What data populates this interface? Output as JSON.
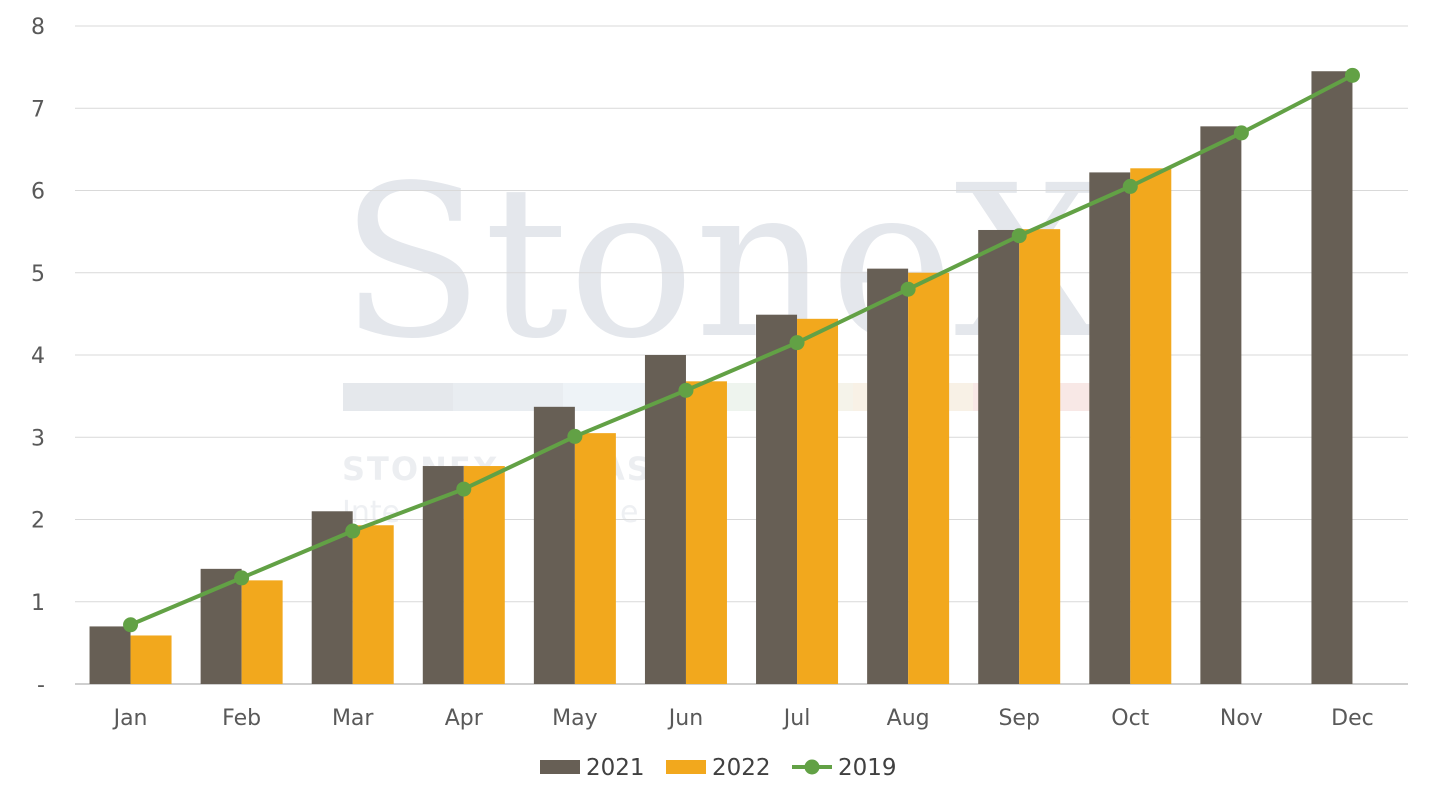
{
  "chart_data": {
    "type": "bar",
    "categories": [
      "Jan",
      "Feb",
      "Mar",
      "Apr",
      "May",
      "Jun",
      "Jul",
      "Aug",
      "Sep",
      "Oct",
      "Nov",
      "Dec"
    ],
    "series": [
      {
        "name": "2021",
        "type": "bar",
        "color": "#675f55",
        "values": [
          0.7,
          1.4,
          2.1,
          2.65,
          3.37,
          4.0,
          4.49,
          5.05,
          5.52,
          6.22,
          6.78,
          7.45
        ]
      },
      {
        "name": "2022",
        "type": "bar",
        "color": "#f2a81d",
        "values": [
          0.59,
          1.26,
          1.93,
          2.65,
          3.05,
          3.68,
          4.44,
          5.0,
          5.53,
          6.27,
          null,
          null
        ]
      },
      {
        "name": "2019",
        "type": "line",
        "color": "#62a145",
        "values": [
          0.72,
          1.29,
          1.86,
          2.37,
          3.01,
          3.57,
          4.15,
          4.8,
          5.45,
          6.05,
          6.7,
          7.4
        ]
      }
    ],
    "yticks": [
      "-",
      "1",
      "2",
      "3",
      "4",
      "5",
      "6",
      "7",
      "8"
    ],
    "ylim": [
      0,
      8
    ],
    "title": "",
    "xlabel": "",
    "ylabel": "",
    "grid": true,
    "legend_position": "bottom"
  },
  "watermark": {
    "brand": "StoneX",
    "line1": "STONEX",
    "line2": "AS",
    "line3": "Inte",
    "line4": "e"
  }
}
